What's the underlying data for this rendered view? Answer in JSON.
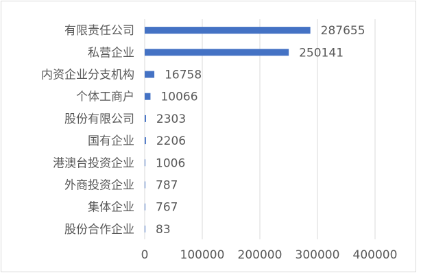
{
  "chart_data": {
    "type": "bar",
    "orientation": "horizontal",
    "categories": [
      "有限责任公司",
      "私营企业",
      "内资企业分支机构",
      "个体工商户",
      "股份有限公司",
      "国有企业",
      "港澳台投资企业",
      "外商投资企业",
      "集体企业",
      "股份合作企业"
    ],
    "values": [
      287655,
      250141,
      16758,
      10066,
      2303,
      2206,
      1006,
      787,
      767,
      83
    ],
    "data_labels": [
      "287655",
      "250141",
      "16758",
      "10066",
      "2303",
      "2206",
      "1006",
      "787",
      "767",
      "83"
    ],
    "xlim": [
      0,
      400000
    ],
    "xticks": [
      0,
      100000,
      200000,
      300000,
      400000
    ],
    "xtick_labels": [
      "0",
      "100000",
      "200000",
      "300000",
      "400000"
    ],
    "grid": "vertical",
    "bar_color": "#4472C4",
    "legend": "none"
  }
}
